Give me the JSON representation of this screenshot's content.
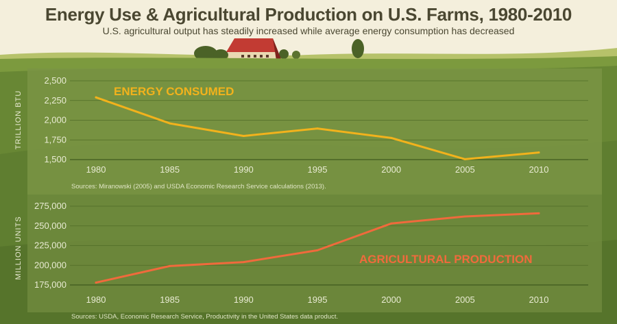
{
  "header": {
    "title": "Energy Use & Agricultural Production on U.S. Farms, 1980-2010",
    "subtitle": "U.S. agricultural output has steadily increased while average energy consumption has decreased"
  },
  "colors": {
    "energy_line": "#f2b21c",
    "production_line": "#f06a3c",
    "panel": "#6f8c3c"
  },
  "chart_data": [
    {
      "type": "line",
      "series_label": "ENERGY CONSUMED",
      "ylabel": "TRILLION BTU",
      "x": [
        1980,
        1985,
        1990,
        1995,
        2000,
        2005,
        2010
      ],
      "x_labels": [
        "1980",
        "1985",
        "1990",
        "1995",
        "2000",
        "2005",
        "2010"
      ],
      "values": [
        2290,
        1960,
        1800,
        1895,
        1775,
        1505,
        1590
      ],
      "yticks": [
        1500,
        1750,
        2000,
        2250,
        2500
      ],
      "ytick_labels": [
        "1,500",
        "1,750",
        "2,000",
        "2,250",
        "2,500"
      ],
      "ylim": [
        1500,
        2500
      ],
      "source": "Sources: Miranowski (2005) and USDA Economic Research Service calculations (2013)."
    },
    {
      "type": "line",
      "series_label": "AGRICULTURAL PRODUCTION",
      "ylabel": "MILLION UNITS",
      "x": [
        1980,
        1985,
        1990,
        1995,
        2000,
        2005,
        2010
      ],
      "x_labels": [
        "1980",
        "1985",
        "1990",
        "1995",
        "2000",
        "2005",
        "2010"
      ],
      "values": [
        178000,
        199000,
        204000,
        219000,
        253000,
        262000,
        266000
      ],
      "yticks": [
        175000,
        200000,
        225000,
        250000,
        275000
      ],
      "ytick_labels": [
        "175,000",
        "200,000",
        "225,000",
        "250,000",
        "275,000"
      ],
      "ylim": [
        175000,
        275000
      ],
      "source": "Sources: USDA, Economic Research Service, Productivity in the United States data product."
    }
  ]
}
